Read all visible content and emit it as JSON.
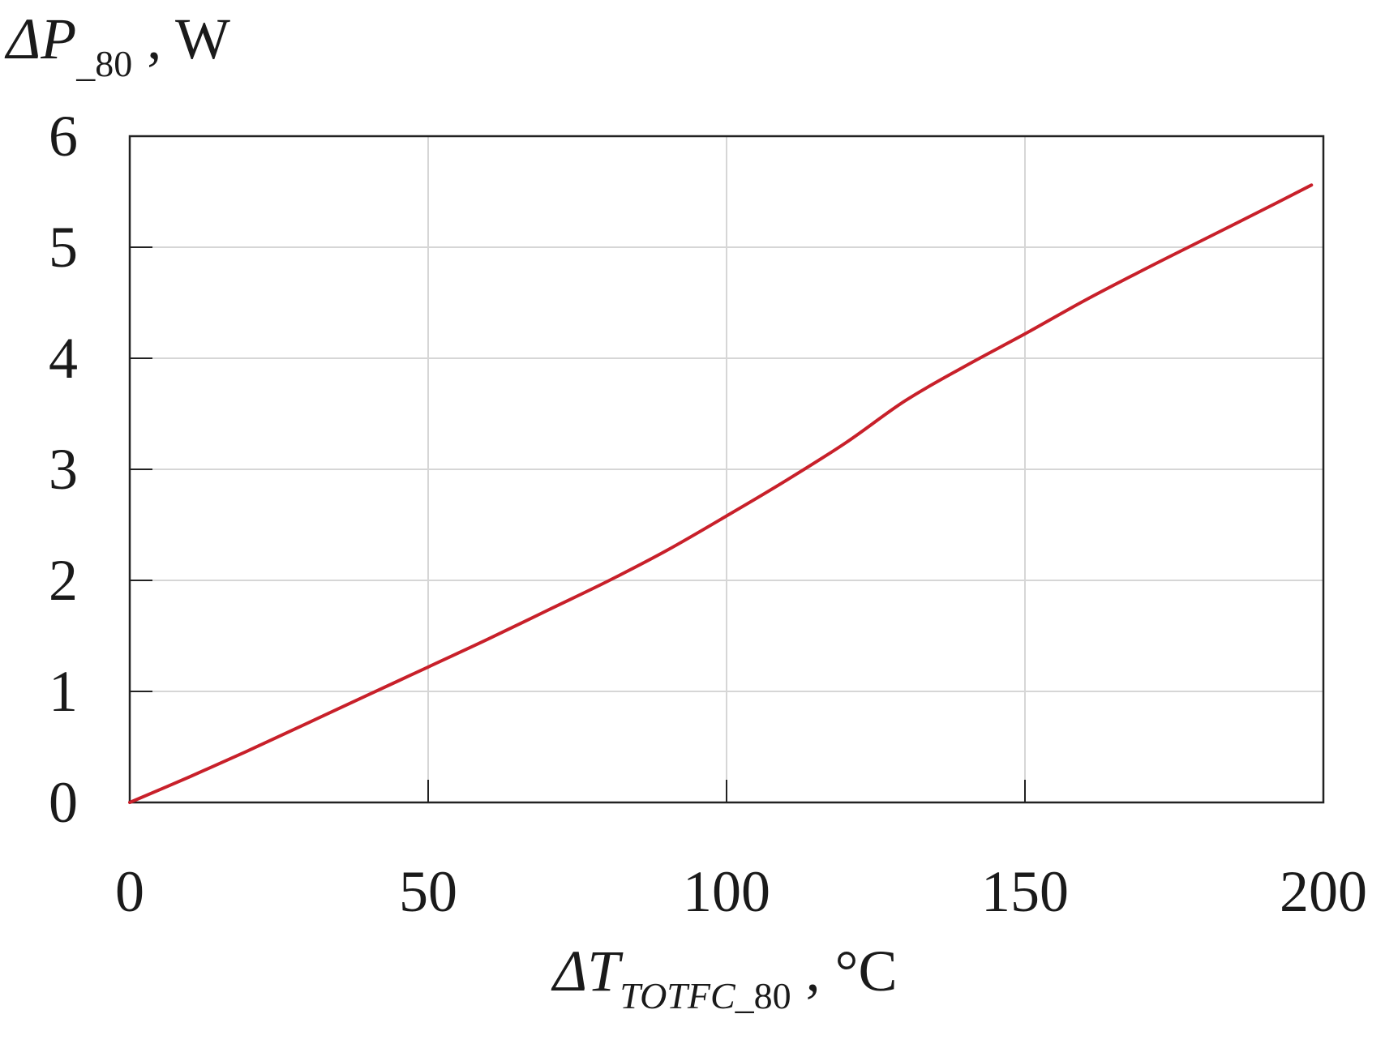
{
  "chart_data": {
    "type": "line",
    "xlabel": {
      "prefix": "ΔT",
      "sub_italic": "TOTFC",
      "sub_tail": "_80",
      "suffix": " , °C"
    },
    "ylabel": {
      "prefix": "ΔP",
      "sub_tail": "_80",
      "suffix": " , W"
    },
    "xlim": [
      0,
      200
    ],
    "ylim": [
      0,
      6
    ],
    "xticks": [
      0,
      50,
      100,
      150,
      200
    ],
    "yticks": [
      0,
      1,
      2,
      3,
      4,
      5,
      6
    ],
    "xtick_labels": [
      "0",
      "50",
      "100",
      "150",
      "200"
    ],
    "ytick_labels": [
      "0",
      "1",
      "2",
      "3",
      "4",
      "5",
      "6"
    ],
    "grid": true,
    "colors": {
      "series": "#c8202a",
      "grid": "#d6d6d6",
      "axis": "#222222"
    },
    "series": [
      {
        "x": [
          0,
          10,
          20,
          30,
          40,
          50,
          60,
          70,
          80,
          90,
          100,
          110,
          120,
          130,
          140,
          150,
          160,
          170,
          180,
          190,
          198
        ],
        "y": [
          0,
          0.23,
          0.47,
          0.72,
          0.97,
          1.22,
          1.47,
          1.73,
          1.99,
          2.27,
          2.58,
          2.9,
          3.24,
          3.62,
          3.93,
          4.22,
          4.52,
          4.8,
          5.07,
          5.34,
          5.56
        ]
      }
    ]
  }
}
